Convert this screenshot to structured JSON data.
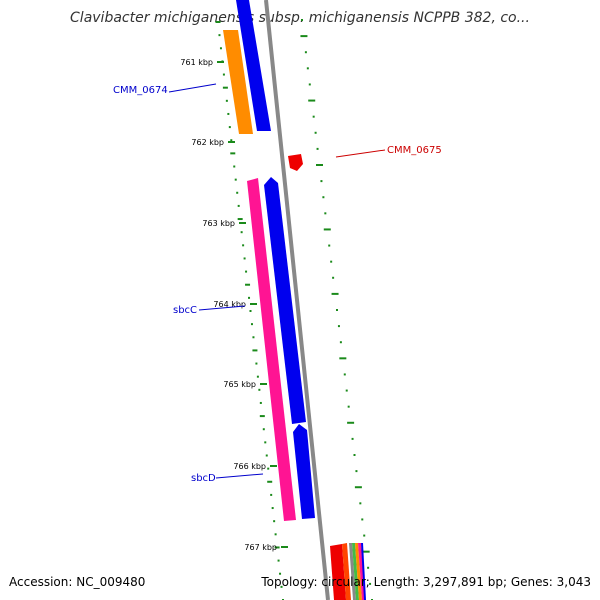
{
  "title": "Clavibacter michiganensis subsp. michiganensis NCPPB 382, co...",
  "footer": {
    "accession": "Accession: NC_009480",
    "summary": "Topology: circular; Length: 3,297,891 bp; Genes: 3,043"
  },
  "colors": {
    "backbone": "#888888",
    "gc_ticks": "#1a8a1a",
    "label_blue": "#0000cc",
    "label_red": "#cc0000"
  },
  "ticks": [
    "761 kbp",
    "762 kbp",
    "763 kbp",
    "764 kbp",
    "765 kbp",
    "766 kbp",
    "767 kbp"
  ],
  "gene_labels": [
    "CMM_0674",
    "CMM_0675",
    "sbcC",
    "sbcD"
  ],
  "features": [
    {
      "name": "CMM_0674",
      "color": "#ff8c00"
    },
    {
      "name": "blue-gene-upper",
      "color": "#0000ee"
    },
    {
      "name": "CMM_0675",
      "color": "#ee0000"
    },
    {
      "name": "sbcC",
      "color": "#ff1493"
    },
    {
      "name": "sbcD",
      "color": "#0000ee"
    }
  ]
}
